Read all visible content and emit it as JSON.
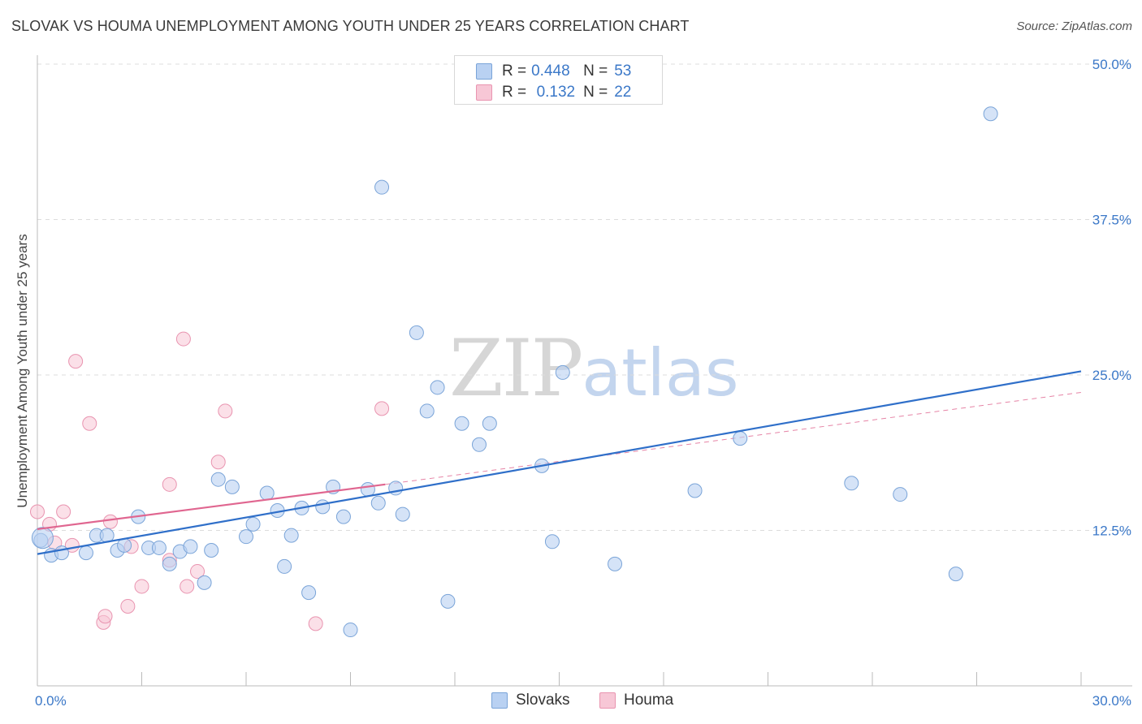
{
  "title": "SLOVAK VS HOUMA UNEMPLOYMENT AMONG YOUTH UNDER 25 YEARS CORRELATION CHART",
  "source": "Source: ZipAtlas.com",
  "watermark": {
    "zip": "ZIP",
    "atlas": "atlas"
  },
  "legend": {
    "series1": {
      "r_label": "R =",
      "r_value": "0.448",
      "n_label": "N =",
      "n_value": "53"
    },
    "series2": {
      "r_label": "R =",
      "r_value": "0.132",
      "n_label": "N =",
      "n_value": "22"
    }
  },
  "bottom_legend": {
    "series1": "Slovaks",
    "series2": "Houma"
  },
  "colors": {
    "blue_fill": "#b9d1f2",
    "blue_stroke": "#7aa4d8",
    "blue_line": "#2f6fc9",
    "pink_fill": "#f7c7d6",
    "pink_stroke": "#e994b0",
    "pink_line": "#e06690",
    "tick_text": "#3b78c8",
    "grid": "#dcdcdc"
  },
  "chart_data": {
    "type": "scatter",
    "title": "SLOVAK VS HOUMA UNEMPLOYMENT AMONG YOUTH UNDER 25 YEARS CORRELATION CHART",
    "xlabel": "",
    "ylabel": "Unemployment Among Youth under 25 years",
    "xlim": [
      0,
      30
    ],
    "ylim": [
      0,
      50
    ],
    "x_tick_labels": [
      "0.0%",
      "30.0%"
    ],
    "y_ticks": [
      12.5,
      25.0,
      37.5,
      50.0
    ],
    "y_tick_labels": [
      "12.5%",
      "25.0%",
      "37.5%",
      "50.0%"
    ],
    "series": [
      {
        "name": "Slovaks",
        "r": 0.448,
        "n": 53,
        "trend": {
          "x": [
            0,
            30
          ],
          "y": [
            10.6,
            25.3
          ],
          "style": "solid"
        },
        "points": [
          [
            0.1,
            11.7
          ],
          [
            0.4,
            10.5
          ],
          [
            0.7,
            10.7
          ],
          [
            1.4,
            10.7
          ],
          [
            1.7,
            12.1
          ],
          [
            2.0,
            12.1
          ],
          [
            2.3,
            10.9
          ],
          [
            2.5,
            11.3
          ],
          [
            2.9,
            13.6
          ],
          [
            3.2,
            11.1
          ],
          [
            3.5,
            11.1
          ],
          [
            3.8,
            9.8
          ],
          [
            4.1,
            10.8
          ],
          [
            4.4,
            11.2
          ],
          [
            4.8,
            8.3
          ],
          [
            5.0,
            10.9
          ],
          [
            5.2,
            16.6
          ],
          [
            5.6,
            16.0
          ],
          [
            6.0,
            12.0
          ],
          [
            6.2,
            13.0
          ],
          [
            6.6,
            15.5
          ],
          [
            6.9,
            14.1
          ],
          [
            7.1,
            9.6
          ],
          [
            7.3,
            12.1
          ],
          [
            7.6,
            14.3
          ],
          [
            7.8,
            7.5
          ],
          [
            8.2,
            14.4
          ],
          [
            8.5,
            16.0
          ],
          [
            8.8,
            13.6
          ],
          [
            9.0,
            4.5
          ],
          [
            9.5,
            15.8
          ],
          [
            9.8,
            14.7
          ],
          [
            9.9,
            40.1
          ],
          [
            10.3,
            15.9
          ],
          [
            10.5,
            13.8
          ],
          [
            10.9,
            28.4
          ],
          [
            11.2,
            22.1
          ],
          [
            11.5,
            24.0
          ],
          [
            11.8,
            6.8
          ],
          [
            12.2,
            21.1
          ],
          [
            12.7,
            19.4
          ],
          [
            13.0,
            21.1
          ],
          [
            14.5,
            17.7
          ],
          [
            14.8,
            11.6
          ],
          [
            15.1,
            25.2
          ],
          [
            16.6,
            9.8
          ],
          [
            18.9,
            15.7
          ],
          [
            20.2,
            19.9
          ],
          [
            23.4,
            16.3
          ],
          [
            24.8,
            15.4
          ],
          [
            26.4,
            9.0
          ],
          [
            27.4,
            46.0
          ],
          [
            0.15,
            11.9
          ]
        ]
      },
      {
        "name": "Houma",
        "r": 0.132,
        "n": 22,
        "trend": {
          "x": [
            0,
            10
          ],
          "y": [
            12.6,
            16.2
          ],
          "style": "solid",
          "extended_to": [
            30,
            23.6
          ],
          "extended_style": "dashed"
        },
        "points": [
          [
            0.0,
            14.0
          ],
          [
            0.35,
            13.0
          ],
          [
            0.5,
            11.5
          ],
          [
            0.75,
            14.0
          ],
          [
            1.0,
            11.3
          ],
          [
            1.1,
            26.1
          ],
          [
            1.5,
            21.1
          ],
          [
            1.9,
            5.1
          ],
          [
            1.95,
            5.6
          ],
          [
            2.1,
            13.2
          ],
          [
            2.6,
            6.4
          ],
          [
            2.7,
            11.2
          ],
          [
            3.0,
            8.0
          ],
          [
            3.8,
            10.1
          ],
          [
            3.8,
            16.2
          ],
          [
            4.2,
            27.9
          ],
          [
            4.3,
            8.0
          ],
          [
            4.6,
            9.2
          ],
          [
            5.2,
            18.0
          ],
          [
            5.4,
            22.1
          ],
          [
            8.0,
            5.0
          ],
          [
            9.9,
            22.3
          ]
        ]
      }
    ]
  }
}
